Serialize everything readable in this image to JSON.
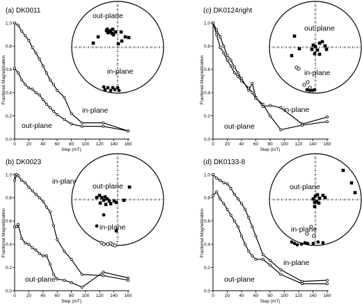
{
  "chart_data": [
    {
      "type": "line",
      "title": "(a) DK0011",
      "xlabel": "Step (mT)",
      "ylabel": "Fractional Magnetization",
      "xlim": [
        0,
        160
      ],
      "ylim": [
        0,
        1.0
      ],
      "xticks": [
        "0",
        "20",
        "40",
        "60",
        "80",
        "100",
        "120",
        "140",
        "160"
      ],
      "yticks": [
        "0.0",
        "0.2",
        "0.4",
        "0.6",
        "0.8",
        "1.0"
      ],
      "annotations": [
        "in-plane",
        "out-plane"
      ],
      "stereonet_labels": [
        "out-plane",
        "in-plane"
      ],
      "series": [
        {
          "name": "in-plane",
          "x": [
            0,
            5,
            10,
            15,
            20,
            25,
            30,
            35,
            40,
            45,
            50,
            55,
            60,
            70,
            80,
            95,
            125,
            160
          ],
          "y": [
            1.0,
            0.98,
            0.93,
            0.89,
            0.85,
            0.79,
            0.74,
            0.69,
            0.63,
            0.57,
            0.51,
            0.47,
            0.42,
            0.36,
            0.22,
            0.14,
            0.14,
            0.07
          ]
        },
        {
          "name": "out-plane",
          "x": [
            0,
            5,
            10,
            15,
            20,
            25,
            30,
            35,
            40,
            45,
            50,
            55,
            60,
            70,
            80,
            95,
            125,
            160
          ],
          "y": [
            0.61,
            0.57,
            0.51,
            0.47,
            0.44,
            0.43,
            0.4,
            0.38,
            0.34,
            0.3,
            0.27,
            0.24,
            0.21,
            0.17,
            0.13,
            0.11,
            0.11,
            0.07
          ]
        }
      ]
    },
    {
      "type": "line",
      "title": "(c) DK0124right",
      "xlabel": "Step (mT)",
      "ylabel": "Fractional Magnetization",
      "xlim": [
        0,
        160
      ],
      "ylim": [
        0,
        1.0
      ],
      "xticks": [
        "0",
        "20",
        "40",
        "60",
        "80",
        "100",
        "120",
        "140",
        "160"
      ],
      "yticks": [
        "0.0",
        "0.2",
        "0.4",
        "0.6",
        "0.8",
        "1.0"
      ],
      "annotations": [
        "in-plane",
        "out-plane"
      ],
      "stereonet_labels": [
        "out-plane",
        "in-plane"
      ],
      "series": [
        {
          "name": "in-plane",
          "x": [
            0,
            5,
            10,
            15,
            20,
            25,
            30,
            35,
            40,
            50,
            55,
            60,
            70,
            80,
            95,
            125,
            160
          ],
          "y": [
            1.0,
            0.94,
            0.88,
            0.8,
            0.72,
            0.68,
            0.62,
            0.57,
            0.52,
            0.42,
            0.48,
            0.36,
            0.28,
            0.29,
            0.27,
            0.13,
            0.19
          ]
        },
        {
          "name": "out-plane",
          "x": [
            0,
            5,
            10,
            15,
            20,
            25,
            30,
            35,
            40,
            50,
            55,
            60,
            70,
            80,
            95,
            125,
            160
          ],
          "y": [
            1.0,
            0.9,
            0.79,
            0.74,
            0.68,
            0.63,
            0.57,
            0.54,
            0.5,
            0.44,
            0.4,
            0.35,
            0.3,
            0.2,
            0.08,
            0.12,
            0.15
          ]
        }
      ]
    },
    {
      "type": "line",
      "title": "(b) DK0023",
      "xlabel": "Step (mT)",
      "ylabel": "Fractional Magnetization",
      "xlim": [
        0,
        160
      ],
      "ylim": [
        0,
        1.0
      ],
      "xticks": [
        "0",
        "20",
        "40",
        "60",
        "80",
        "100",
        "120",
        "140",
        "160"
      ],
      "yticks": [
        "0.0",
        "0.2",
        "0.4",
        "0.6",
        "0.8",
        "1.0"
      ],
      "annotations": [
        "in-plane",
        "out-plane"
      ],
      "stereonet_labels": [
        "out-plane",
        "in-plane"
      ],
      "series": [
        {
          "name": "in-plane",
          "x": [
            0,
            3,
            5,
            10,
            15,
            20,
            25,
            30,
            35,
            40,
            45,
            50,
            55,
            60,
            70,
            80,
            95,
            125,
            160
          ],
          "y": [
            0.95,
            1.0,
            0.99,
            0.95,
            0.93,
            0.89,
            0.86,
            0.83,
            0.8,
            0.77,
            0.72,
            0.68,
            0.56,
            0.44,
            0.34,
            0.27,
            0.14,
            0.13,
            0.09
          ]
        },
        {
          "name": "out-plane",
          "x": [
            0,
            3,
            5,
            10,
            15,
            20,
            25,
            30,
            35,
            40,
            45,
            50,
            55,
            60,
            70,
            80,
            95,
            125,
            160
          ],
          "y": [
            0.55,
            0.55,
            0.57,
            0.45,
            0.41,
            0.4,
            0.37,
            0.35,
            0.32,
            0.3,
            0.3,
            0.23,
            0.14,
            0.1,
            0.09,
            0.07,
            0.03,
            0.16,
            0.11
          ]
        }
      ]
    },
    {
      "type": "line",
      "title": "(d) DK0133-8",
      "xlabel": "Step (mT)",
      "ylabel": "Fractional Magnetization",
      "xlim": [
        0,
        160
      ],
      "ylim": [
        0,
        1.0
      ],
      "xticks": [
        "0",
        "20",
        "40",
        "60",
        "80",
        "100",
        "120",
        "140",
        "160"
      ],
      "yticks": [
        "0.0",
        "0.2",
        "0.4",
        "0.6",
        "0.8",
        "1.0"
      ],
      "annotations": [
        "in-plane",
        "out-plane"
      ],
      "stereonet_labels": [
        "out-plane",
        "in-plane"
      ],
      "series": [
        {
          "name": "in-plane",
          "x": [
            0,
            5,
            10,
            15,
            20,
            25,
            30,
            35,
            40,
            45,
            50,
            55,
            60,
            70,
            80,
            95,
            125,
            160
          ],
          "y": [
            1.0,
            0.97,
            0.95,
            0.93,
            0.92,
            0.88,
            0.83,
            0.79,
            0.75,
            0.7,
            0.63,
            0.55,
            0.47,
            0.31,
            0.26,
            0.18,
            0.08,
            0.09
          ]
        },
        {
          "name": "out-plane",
          "x": [
            0,
            5,
            10,
            15,
            20,
            25,
            30,
            35,
            40,
            45,
            50,
            55,
            60,
            70,
            80,
            95,
            125,
            160
          ],
          "y": [
            0.82,
            0.85,
            0.79,
            0.75,
            0.7,
            0.65,
            0.6,
            0.55,
            0.47,
            0.4,
            0.34,
            0.3,
            0.27,
            0.27,
            0.22,
            0.14,
            0.06,
            0.06
          ]
        }
      ]
    }
  ]
}
